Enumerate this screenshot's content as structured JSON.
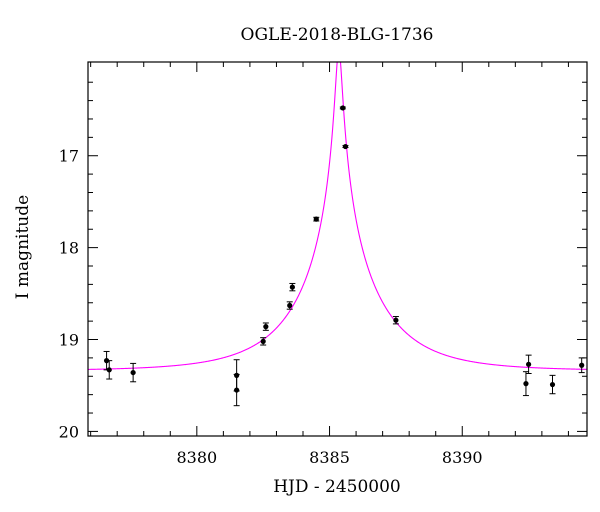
{
  "chart_data": {
    "type": "scatter",
    "title": "OGLE-2018-BLG-1736",
    "xlabel": "HJD - 2450000",
    "ylabel": "I magnitude",
    "xlim": [
      8375.9,
      8394.7
    ],
    "ylim": [
      20.05,
      15.98
    ],
    "y_inverted": true,
    "grid": false,
    "x_ticks": [
      8380,
      8385,
      8390
    ],
    "x_tick_labels": [
      "8380",
      "8385",
      "8390"
    ],
    "y_ticks": [
      17,
      18,
      19,
      20
    ],
    "y_tick_labels": [
      "17",
      "18",
      "19",
      "20"
    ],
    "points": [
      {
        "x": 8376.6,
        "y": 19.23,
        "err": 0.1
      },
      {
        "x": 8376.7,
        "y": 19.33,
        "err": 0.1
      },
      {
        "x": 8377.6,
        "y": 19.36,
        "err": 0.1
      },
      {
        "x": 8381.5,
        "y": 19.39,
        "err": 0.17
      },
      {
        "x": 8381.5,
        "y": 19.55,
        "err": 0.17
      },
      {
        "x": 8382.5,
        "y": 19.02,
        "err": 0.04
      },
      {
        "x": 8382.6,
        "y": 18.86,
        "err": 0.04
      },
      {
        "x": 8383.5,
        "y": 18.63,
        "err": 0.04
      },
      {
        "x": 8383.6,
        "y": 18.43,
        "err": 0.04
      },
      {
        "x": 8384.5,
        "y": 17.69,
        "err": 0.02
      },
      {
        "x": 8385.5,
        "y": 16.48,
        "err": 0.01
      },
      {
        "x": 8385.6,
        "y": 16.9,
        "err": 0.01
      },
      {
        "x": 8387.5,
        "y": 18.79,
        "err": 0.04
      },
      {
        "x": 8392.4,
        "y": 19.48,
        "err": 0.13
      },
      {
        "x": 8392.5,
        "y": 19.27,
        "err": 0.1
      },
      {
        "x": 8393.4,
        "y": 19.49,
        "err": 0.1
      },
      {
        "x": 8394.5,
        "y": 19.28,
        "err": 0.08
      }
    ],
    "model": {
      "type": "microlensing-fit",
      "color": "#ff00ff",
      "t0": 8385.35,
      "u0": 0.04,
      "tE": 2.95,
      "baseline_mag": 19.34
    },
    "colors": {
      "points": "#000000",
      "axes": "#000000",
      "model": "#ff00ff"
    }
  }
}
